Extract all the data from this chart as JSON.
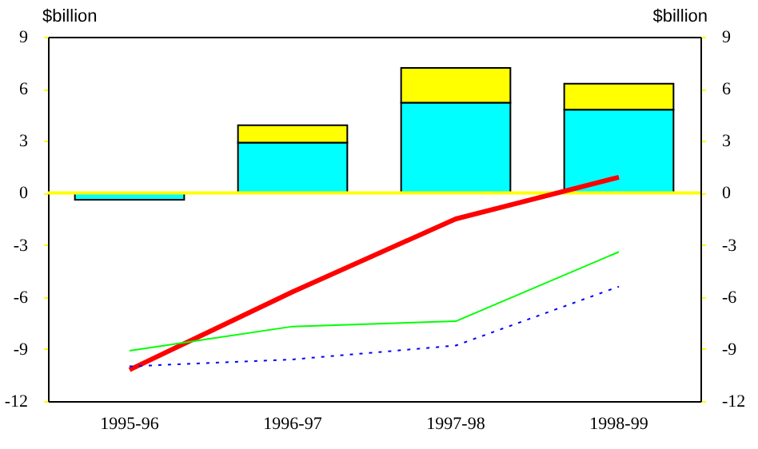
{
  "chart_data": {
    "type": "bar",
    "stacked": true,
    "ylabel": "$billion",
    "y2label": "$billion",
    "categories": [
      "1995-96",
      "1996-97",
      "1997-98",
      "1998-99"
    ],
    "series": [
      {
        "color": "#00ffff",
        "values": [
          -0.4,
          2.9,
          5.2,
          4.8
        ]
      },
      {
        "color": "#ffff00",
        "values": [
          null,
          1.0,
          2.0,
          1.5
        ]
      },
      {
        "type": "line",
        "color": "#ff0000",
        "values": [
          -10.2,
          -5.7,
          -1.5,
          0.9
        ]
      },
      {
        "type": "line",
        "color": "#00ff00",
        "values": [
          -9.1,
          -7.7,
          -7.4,
          -3.4
        ]
      },
      {
        "type": "line",
        "color": "#0000ff",
        "line_style": "dotted",
        "values": [
          -10.0,
          -9.6,
          -8.8,
          -5.4
        ]
      }
    ],
    "ylim": [
      -12,
      9
    ],
    "yticks": [
      -12,
      -9,
      -6,
      -3,
      0,
      3,
      6,
      9
    ],
    "y2lim": [
      -12,
      9
    ],
    "y2ticks": [
      -12,
      -9,
      -6,
      -3,
      0,
      3,
      6,
      9
    ],
    "ref_lines": [
      {
        "axis": "y",
        "value": 0,
        "color": "#ffff00"
      }
    ],
    "grid": false,
    "legend": false
  }
}
